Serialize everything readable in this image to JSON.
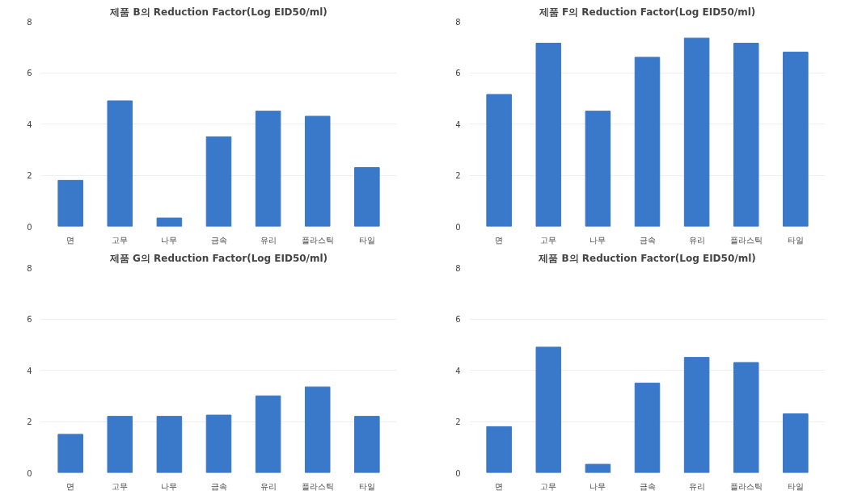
{
  "chart_data": [
    {
      "type": "bar",
      "title": "제품 B의 Reduction Factor(Log EID50/ml)",
      "categories": [
        "면",
        "고무",
        "나무",
        "금속",
        "유리",
        "플라스틱",
        "타일"
      ],
      "values": [
        1.8,
        4.9,
        0.33,
        3.5,
        4.5,
        4.3,
        2.3
      ],
      "color": "#3a78c9",
      "ylim": [
        0,
        8
      ],
      "yticks": [
        0,
        2,
        4,
        6,
        8
      ],
      "grid": "y"
    },
    {
      "type": "bar",
      "title": "제품 F의 Reduction Factor(Log EID50/ml)",
      "categories": [
        "면",
        "고무",
        "나무",
        "금속",
        "유리",
        "플라스틱",
        "타일"
      ],
      "values": [
        5.15,
        7.15,
        4.5,
        6.6,
        7.35,
        7.15,
        6.8
      ],
      "color": "#3a78c9",
      "ylim": [
        0,
        8
      ],
      "yticks": [
        0,
        2,
        4,
        6,
        8
      ],
      "grid": "y"
    },
    {
      "type": "bar",
      "title": "제품 G의 Reduction Factor(Log EID50/ml)",
      "categories": [
        "면",
        "고무",
        "나무",
        "금속",
        "유리",
        "플라스틱",
        "타일"
      ],
      "values": [
        1.5,
        2.2,
        2.2,
        2.25,
        3.0,
        3.35,
        2.2
      ],
      "color": "#3a78c9",
      "ylim": [
        0,
        8
      ],
      "yticks": [
        0,
        2,
        4,
        6,
        8
      ],
      "grid": "y"
    },
    {
      "type": "bar",
      "title": "제품 B의 Reduction Factor(Log EID50/ml)",
      "categories": [
        "면",
        "고무",
        "나무",
        "금속",
        "유리",
        "플라스틱",
        "타일"
      ],
      "values": [
        1.8,
        4.9,
        0.33,
        3.5,
        4.5,
        4.3,
        2.3
      ],
      "color": "#3a78c9",
      "ylim": [
        0,
        8
      ],
      "yticks": [
        0,
        2,
        4,
        6,
        8
      ],
      "grid": "y"
    }
  ]
}
